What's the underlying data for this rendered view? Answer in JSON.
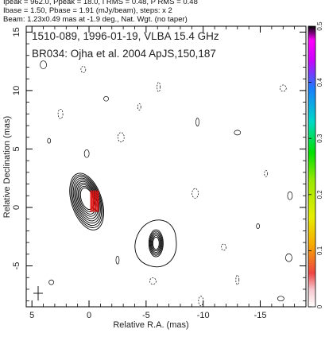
{
  "header": {
    "line1": "Ipeak = 962.0, Ppeak = 18.0, I RMS = 0.48, P RMS = 0.48",
    "line2": "Ibase = 1.50, Pbase = 1.91 (mJy/beam), steps: x 2",
    "line3": "Beam: 1.23x0.49 mas at -1.9 deg., Nat. Wgt. (no taper)"
  },
  "annotation": {
    "line1": "1510-089, 1996-01-19, VLBA 15.4 GHz",
    "line2": "BR034: Ojha et al. 2004 ApJS,150,187"
  },
  "colors": {
    "contour": "#000000",
    "polarization": "#dd1111",
    "frame": "#000000"
  },
  "chart_data": {
    "type": "contour",
    "xlabel": "Relative R.A. (mas)",
    "ylabel": "Relative Declination (mas)",
    "xlim": [
      5.5,
      -19
    ],
    "ylim": [
      -8.5,
      15.5
    ],
    "xticks": [
      5,
      0,
      -5,
      -10,
      -15
    ],
    "xtick_labels": [
      "5",
      "0",
      "-5",
      "-10",
      "-15"
    ],
    "yticks": [
      -5,
      0,
      5,
      10,
      15
    ],
    "ytick_labels": [
      "-5",
      "0",
      "5",
      "10",
      "15"
    ],
    "core": {
      "x": 0.2,
      "y": 0.5,
      "n_contours": 10
    },
    "jet_component": {
      "x": -5.8,
      "y": -3.0,
      "n_contours": 6
    },
    "colorbar": {
      "min": 0,
      "max": 0.5,
      "ticks": [
        0,
        0.1,
        0.2,
        0.3,
        0.4,
        0.5
      ],
      "tick_labels": [
        "0",
        "0.1",
        "0.2",
        "0.3",
        "0.4",
        "0.5"
      ]
    }
  }
}
